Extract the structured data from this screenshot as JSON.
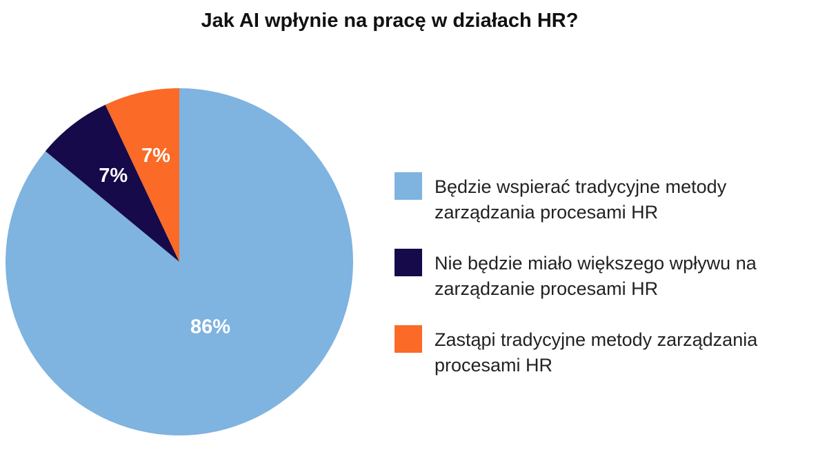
{
  "chart_data": {
    "type": "pie",
    "title": "Jak AI wpłynie na pracę w działach HR?",
    "slices": [
      {
        "label": "Będzie wspierać tradycyjne metody zarządzania procesami HR",
        "value": 86,
        "value_label": "86%",
        "color": "#7fb3e0"
      },
      {
        "label": "Nie będzie miało większego wpływu na zarządzanie procesami HR",
        "value": 7,
        "value_label": "7%",
        "color": "#160a4a"
      },
      {
        "label": "Zastąpi tradycyjne metody zarządzania procesami HR",
        "value": 7,
        "value_label": "7%",
        "color": "#fb6a26"
      }
    ],
    "legend_position": "right"
  }
}
